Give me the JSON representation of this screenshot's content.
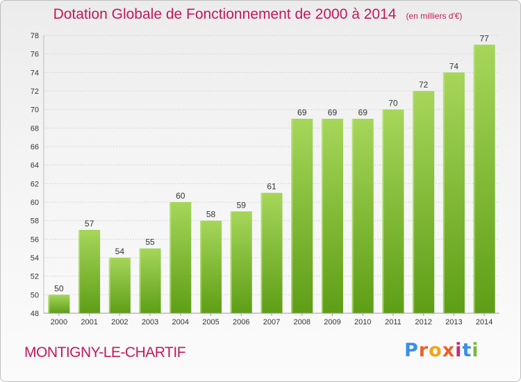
{
  "header": {
    "title": "Dotation Globale de Fonctionnement de 2000 à 2014",
    "unit_note": "(en milliers d'€)"
  },
  "footer": {
    "commune": "MONTIGNY-LE-CHARTIF",
    "brand_letters": [
      "P",
      "r",
      "o",
      "x",
      "i",
      "t",
      "i"
    ]
  },
  "colors": {
    "title": "#c2185b",
    "bar_top": "#a6d65a",
    "bar_bottom": "#5e9e16",
    "grid": "#d7d7d7",
    "axis_text": "#333333"
  },
  "chart_data": {
    "type": "bar",
    "title": "Dotation Globale de Fonctionnement de 2000 à 2014",
    "xlabel": "",
    "ylabel": "",
    "categories": [
      "2000",
      "2001",
      "2002",
      "2003",
      "2004",
      "2005",
      "2006",
      "2007",
      "2008",
      "2009",
      "2010",
      "2011",
      "2012",
      "2013",
      "2014"
    ],
    "values": [
      50,
      57,
      54,
      55,
      60,
      58,
      59,
      61,
      69,
      69,
      69,
      70,
      72,
      74,
      77
    ],
    "ylim": [
      48,
      78
    ],
    "yticks": [
      48,
      50,
      52,
      54,
      56,
      58,
      60,
      62,
      64,
      66,
      68,
      70,
      72,
      74,
      76,
      78
    ],
    "grid": true,
    "data_labels": true
  }
}
